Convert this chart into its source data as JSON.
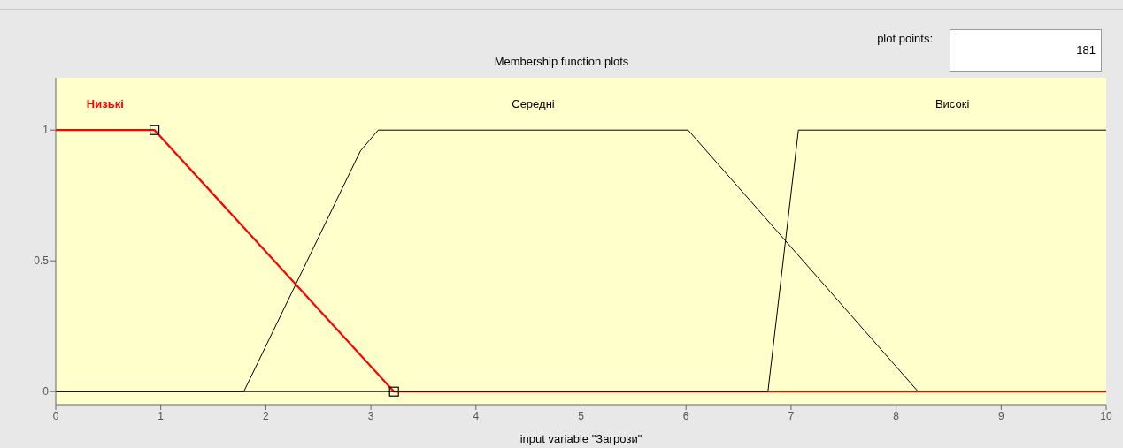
{
  "chart_data": {
    "type": "line",
    "title": "Membership function plots",
    "xlabel": "input variable \"Загрози\"",
    "annotations": [
      "plot points:",
      "181"
    ],
    "xlim": [
      0,
      10
    ],
    "ylim": [
      -0.05,
      1.2
    ],
    "xticks": [
      0,
      1,
      2,
      3,
      4,
      5,
      6,
      7,
      8,
      9,
      10
    ],
    "yticks": [
      0,
      0.5,
      1
    ],
    "grid": false,
    "legend": false,
    "marker": "none",
    "series": [
      {
        "name": "Низькі",
        "color": "#ff0000",
        "x": [
          0,
          0.94,
          3.22,
          10
        ],
        "values": [
          1,
          1,
          0,
          0
        ]
      },
      {
        "name": "Середні",
        "color": "#000000",
        "x": [
          0,
          1.79,
          2.9,
          3.07,
          6.02,
          8.21
        ],
        "values": [
          0,
          0,
          0.92,
          1,
          1,
          0
        ]
      },
      {
        "name": "Високі",
        "color": "#000000",
        "x": [
          0,
          6.78,
          7.07,
          10
        ],
        "values": [
          0,
          0,
          1,
          1
        ]
      },
      {
        "type": "scatter",
        "marker": "square",
        "color": "#000000",
        "x": [
          0.94,
          3.22
        ],
        "values": [
          1,
          0
        ]
      }
    ]
  }
}
